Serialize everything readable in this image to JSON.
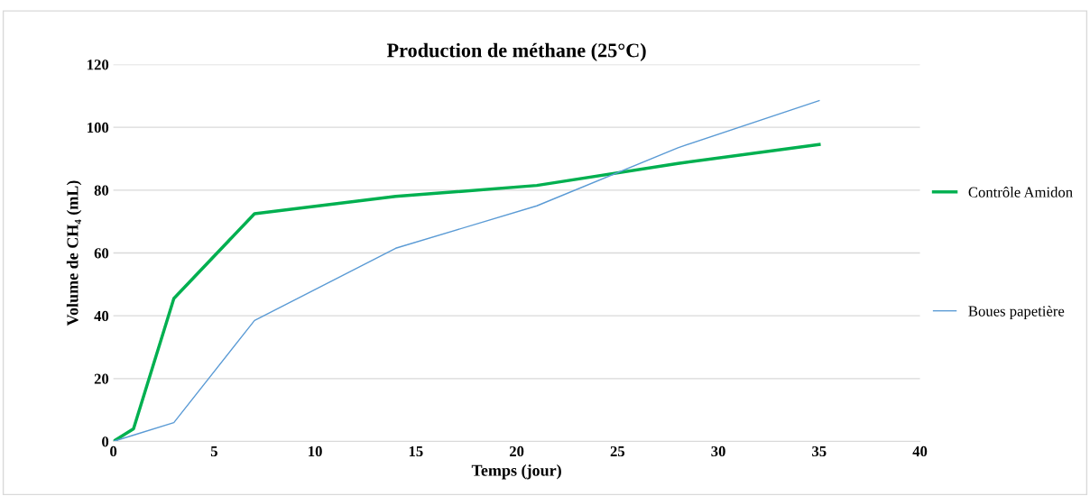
{
  "chart_data": {
    "type": "line",
    "title": "Production de méthane (25°C)",
    "xlabel": "Temps (jour)",
    "ylabel": "Volume de CH₄ (mL)",
    "x": [
      0,
      1,
      3,
      7,
      14,
      21,
      28,
      35
    ],
    "series": [
      {
        "name": "Contrôle Amidon",
        "color": "#00b050",
        "values": [
          0,
          4,
          45.5,
          72.5,
          78,
          81.5,
          88.5,
          94.5
        ]
      },
      {
        "name": "Boues papetière",
        "color": "#5b9bd5",
        "values": [
          0,
          2,
          6,
          38.5,
          61.5,
          75,
          93.5,
          108.5
        ]
      }
    ],
    "xlim": [
      0,
      40
    ],
    "xticks": [
      0,
      5,
      10,
      15,
      20,
      25,
      30,
      35,
      40
    ],
    "ylim": [
      0,
      120
    ],
    "yticks": [
      0,
      20,
      40,
      60,
      80,
      100,
      120
    ],
    "grid": "y",
    "legend": "right",
    "marker": "none",
    "line_style": "solid"
  }
}
